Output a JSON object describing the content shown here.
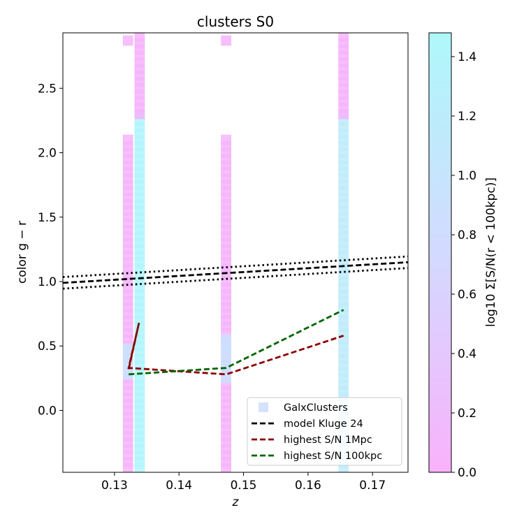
{
  "chart_data": {
    "type": "scatter",
    "title": "clusters S0",
    "xlabel": "z",
    "ylabel": "color g − r",
    "xlim": [
      0.122,
      0.1755
    ],
    "ylim": [
      -0.48,
      2.93
    ],
    "xticks": [
      0.13,
      0.14,
      0.15,
      0.16,
      0.17
    ],
    "xtick_labels": [
      "0.13",
      "0.14",
      "0.15",
      "0.16",
      "0.17"
    ],
    "yticks": [
      0.0,
      0.5,
      1.0,
      1.5,
      2.0,
      2.5
    ],
    "ytick_labels": [
      "0.0",
      "0.5",
      "1.0",
      "1.5",
      "2.0",
      "2.5"
    ],
    "grid": false,
    "legend_position": "lower-right",
    "colorbar": {
      "label": "log10 Σ[S/N(r < 100kpc)]",
      "range": [
        0.0,
        1.48
      ],
      "ticks": [
        0.0,
        0.2,
        0.4,
        0.6,
        0.8,
        1.0,
        1.2,
        1.4
      ],
      "tick_labels": [
        "0.0",
        "0.2",
        "0.4",
        "0.6",
        "0.8",
        "1.0",
        "1.2",
        "1.4"
      ],
      "colors": [
        "#f9b1fb",
        "#d3daff",
        "#aef8fa"
      ]
    },
    "scatter_series": [
      {
        "name": "GalxClusters",
        "marker": "square",
        "columns": [
          {
            "x": 0.1321,
            "y_min": -0.45,
            "y_max": 2.12,
            "cvalue": 0.05
          },
          {
            "x": 0.1321,
            "y_min": 0.28,
            "y_max": 0.48,
            "cvalue": 0.95
          },
          {
            "x": 0.1321,
            "y_min": 2.87,
            "y_max": 2.87,
            "cvalue": 0.05
          },
          {
            "x": 0.1339,
            "y_min": -0.45,
            "y_max": 2.28,
            "cvalue": 1.4
          },
          {
            "x": 0.1339,
            "y_min": 2.3,
            "y_max": 2.91,
            "cvalue": 0.05
          },
          {
            "x": 0.1473,
            "y_min": -0.45,
            "y_max": 2.12,
            "cvalue": 0.05
          },
          {
            "x": 0.1473,
            "y_min": 0.25,
            "y_max": 0.56,
            "cvalue": 0.9
          },
          {
            "x": 0.1473,
            "y_min": 2.87,
            "y_max": 2.87,
            "cvalue": 0.05
          },
          {
            "x": 0.1655,
            "y_min": -0.45,
            "y_max": 2.28,
            "cvalue": 1.15
          },
          {
            "x": 0.1655,
            "y_min": 2.3,
            "y_max": 2.91,
            "cvalue": 0.05
          }
        ]
      }
    ],
    "series": [
      {
        "name": "model Kluge 24",
        "color": "#000000",
        "style": "dashed",
        "x": [
          0.122,
          0.1755
        ],
        "y": [
          0.99,
          1.15
        ]
      },
      {
        "name": "",
        "color": "#000000",
        "style": "dotted",
        "x": [
          0.122,
          0.1755
        ],
        "y": [
          1.035,
          1.195
        ]
      },
      {
        "name": "",
        "color": "#000000",
        "style": "dotted",
        "x": [
          0.122,
          0.1755
        ],
        "y": [
          0.945,
          1.105
        ]
      },
      {
        "name": "highest S/N 1Mpc",
        "color": "#8b0000",
        "style": "dashed",
        "x": [
          0.1322,
          0.1338,
          0.1322,
          0.1473,
          0.1655
        ],
        "y": [
          0.32,
          0.68,
          0.33,
          0.28,
          0.58
        ]
      },
      {
        "name": "highest S/N 100kpc",
        "color": "#006400",
        "style": "dashed",
        "x": [
          0.1322,
          0.1473,
          0.1655
        ],
        "y": [
          0.28,
          0.33,
          0.78
        ]
      }
    ]
  }
}
